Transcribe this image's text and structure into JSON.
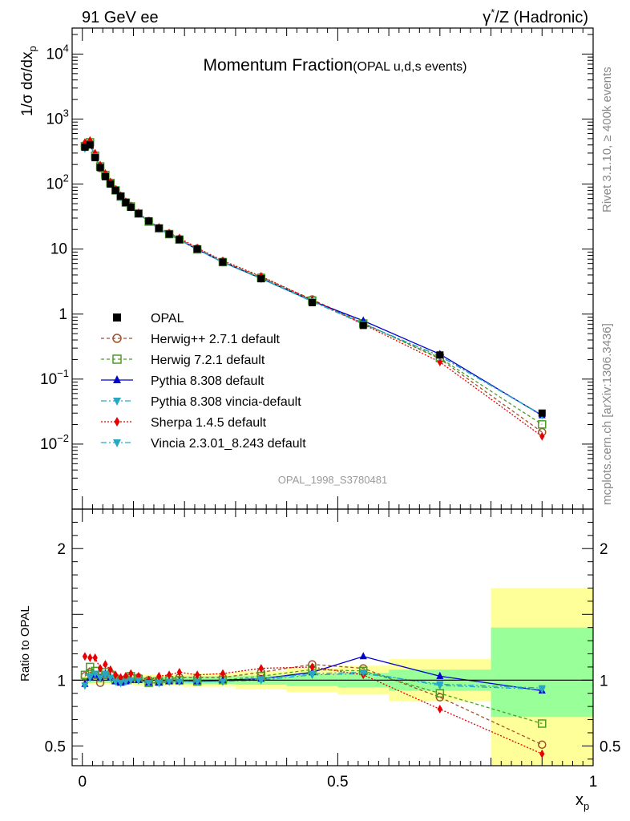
{
  "header": {
    "left": "91 GeV ee",
    "right_prefix": "γ",
    "right_sup": "*",
    "right_suffix": "/Z (Hadronic)"
  },
  "side_labels": {
    "rivet": "Rivet 3.1.10, ≥ 400k events",
    "mcplots": "mcplots.cern.ch [arXiv:1306.3436]"
  },
  "chart_data": {
    "type": "line",
    "title": "Momentum Fraction",
    "subtitle": "(OPAL u,d,s events)",
    "analysis_id": "OPAL_1998_S3780481",
    "ylabel": "1/σ dσ/dx_p",
    "ylabel_parts": {
      "main": "1/σ dσ/dx",
      "sub": "p"
    },
    "xlabel": "x_p",
    "xlabel_parts": {
      "main": "x",
      "sub": "p"
    },
    "xlim": [
      -0.02,
      1.0
    ],
    "ylim_log10": [
      -3.0,
      4.4
    ],
    "main_yticks": [
      {
        "v": 10000,
        "label": "10",
        "sup": "4"
      },
      {
        "v": 1000,
        "label": "10",
        "sup": "3"
      },
      {
        "v": 100,
        "label": "10",
        "sup": "2"
      },
      {
        "v": 10,
        "label": "10",
        "sup": ""
      },
      {
        "v": 1,
        "label": "1",
        "sup": ""
      },
      {
        "v": 0.1,
        "label": "10",
        "sup": "−1"
      },
      {
        "v": 0.01,
        "label": "10",
        "sup": "−2"
      }
    ],
    "xticks": [
      {
        "v": 0,
        "label": "0"
      },
      {
        "v": 0.5,
        "label": "0.5"
      },
      {
        "v": 1,
        "label": "1"
      }
    ],
    "ratio": {
      "ylabel": "Ratio to OPAL",
      "ylim": [
        0.35,
        2.3
      ],
      "yticks": [
        {
          "v": 0.5,
          "label": "0.5"
        },
        {
          "v": 1,
          "label": "1"
        },
        {
          "v": 2,
          "label": "2"
        }
      ],
      "bands": [
        {
          "x0": 0.0,
          "x1": 0.02,
          "inner": [
            0.98,
            1.02
          ],
          "outer": [
            0.97,
            1.03
          ]
        },
        {
          "x0": 0.02,
          "x1": 0.1,
          "inner": [
            0.98,
            1.02
          ],
          "outer": [
            0.97,
            1.03
          ]
        },
        {
          "x0": 0.1,
          "x1": 0.2,
          "inner": [
            0.975,
            1.025
          ],
          "outer": [
            0.96,
            1.04
          ]
        },
        {
          "x0": 0.2,
          "x1": 0.3,
          "inner": [
            0.97,
            1.03
          ],
          "outer": [
            0.95,
            1.05
          ]
        },
        {
          "x0": 0.3,
          "x1": 0.4,
          "inner": [
            0.965,
            1.035
          ],
          "outer": [
            0.93,
            1.07
          ]
        },
        {
          "x0": 0.4,
          "x1": 0.5,
          "inner": [
            0.955,
            1.045
          ],
          "outer": [
            0.91,
            1.09
          ]
        },
        {
          "x0": 0.5,
          "x1": 0.6,
          "inner": [
            0.945,
            1.055
          ],
          "outer": [
            0.89,
            1.11
          ]
        },
        {
          "x0": 0.6,
          "x1": 0.8,
          "inner": [
            0.92,
            1.08
          ],
          "outer": [
            0.84,
            1.16
          ]
        },
        {
          "x0": 0.8,
          "x1": 1.0,
          "inner": [
            0.72,
            1.4
          ],
          "outer": [
            0.35,
            1.7
          ]
        }
      ]
    },
    "x": [
      0.005,
      0.015,
      0.025,
      0.035,
      0.045,
      0.055,
      0.065,
      0.075,
      0.085,
      0.095,
      0.11,
      0.13,
      0.15,
      0.17,
      0.19,
      0.225,
      0.275,
      0.35,
      0.45,
      0.55,
      0.7,
      0.9
    ],
    "series": [
      {
        "name": "OPAL",
        "style": "data",
        "color": "#000000",
        "marker": "square-filled",
        "values": [
          370,
          400,
          255,
          180,
          130,
          100,
          80,
          65,
          52,
          44,
          35,
          27,
          21,
          17,
          14,
          10,
          6.3,
          3.5,
          1.5,
          0.67,
          0.235,
          0.03
        ]
      },
      {
        "name": "Herwig++ 2.7.1 default",
        "color": "#a0522d",
        "marker": "circle-open",
        "dash": "4,3",
        "ratio": [
          1.03,
          1.06,
          1.04,
          0.98,
          1.04,
          1.05,
          1.02,
          1.0,
          1.01,
          1.02,
          1.02,
          1.0,
          0.99,
          1.01,
          1.02,
          1.02,
          1.02,
          1.06,
          1.12,
          1.09,
          0.87,
          0.51
        ]
      },
      {
        "name": "Herwig 7.2.1 default",
        "color": "#4a9e25",
        "marker": "square-open",
        "dash": "4,3",
        "ratio": [
          1.04,
          1.1,
          1.07,
          1.04,
          1.06,
          1.04,
          1.0,
          0.99,
          1.0,
          1.03,
          1.01,
          0.98,
          0.99,
          1.0,
          1.0,
          0.99,
          1.0,
          1.03,
          1.08,
          1.07,
          0.9,
          0.67
        ]
      },
      {
        "name": "Pythia 8.308 default",
        "color": "#0000cc",
        "marker": "triangle-up",
        "dash": "",
        "ratio": [
          0.97,
          1.02,
          1.04,
          1.02,
          1.05,
          1.02,
          0.99,
          0.98,
          0.99,
          1.0,
          1.0,
          0.98,
          0.98,
          0.99,
          0.99,
          0.99,
          1.0,
          1.01,
          1.06,
          1.18,
          1.03,
          0.92
        ]
      },
      {
        "name": "Pythia 8.308 vincia-default",
        "color": "#2aa7c0",
        "marker": "triangle-down",
        "dash": "7,3,2,3",
        "ratio": [
          0.96,
          1.03,
          1.05,
          1.02,
          1.05,
          1.02,
          0.99,
          0.98,
          0.99,
          1.0,
          1.0,
          0.98,
          0.98,
          0.99,
          0.99,
          0.99,
          0.99,
          1.0,
          1.04,
          1.05,
          0.97,
          0.94
        ]
      },
      {
        "name": "Sherpa 1.4.5 default",
        "color": "#e60000",
        "marker": "diamond",
        "dash": "2,2",
        "ratio": [
          1.18,
          1.17,
          1.17,
          1.09,
          1.12,
          1.08,
          1.04,
          1.02,
          1.03,
          1.05,
          1.03,
          1.0,
          1.03,
          1.04,
          1.06,
          1.04,
          1.05,
          1.09,
          1.1,
          1.04,
          0.78,
          0.44
        ]
      },
      {
        "name": "Vincia 2.3.01_8.243 default",
        "color": "#2aa7c0",
        "marker": "triangle-down",
        "dash": "7,3,2,3",
        "ratio": [
          0.96,
          1.02,
          1.05,
          1.02,
          1.04,
          1.02,
          0.99,
          0.98,
          0.99,
          1.0,
          1.0,
          0.98,
          0.98,
          0.99,
          0.99,
          0.99,
          0.99,
          1.01,
          1.05,
          1.06,
          0.96,
          0.93
        ]
      }
    ]
  }
}
